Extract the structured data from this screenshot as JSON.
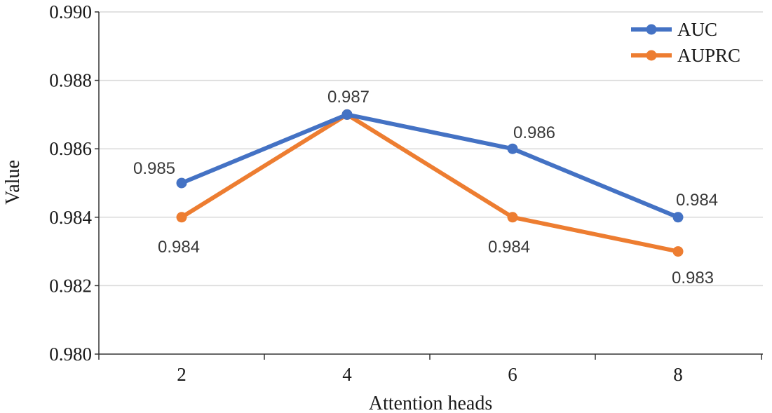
{
  "chart_data": {
    "type": "line",
    "x": [
      2,
      4,
      6,
      8
    ],
    "x_ticks": [
      "2",
      "4",
      "6",
      "8"
    ],
    "series": [
      {
        "name": "AUC",
        "values": [
          0.985,
          0.987,
          0.986,
          0.984
        ],
        "color": "#4472C4",
        "labels": [
          "0.985",
          "0.987",
          "0.986",
          "0.984"
        ]
      },
      {
        "name": "AUPRC",
        "values": [
          0.984,
          0.987,
          0.984,
          0.983
        ],
        "color": "#ED7D31",
        "labels": [
          "0.984",
          "",
          "0.984",
          "0.983"
        ]
      }
    ],
    "xlabel": "Attention heads",
    "ylabel": "Value",
    "ylim": [
      0.98,
      0.99
    ],
    "y_ticks": [
      "0.980",
      "0.982",
      "0.984",
      "0.986",
      "0.988",
      "0.990"
    ],
    "grid": "horizontal",
    "legend_position": "top-right"
  }
}
